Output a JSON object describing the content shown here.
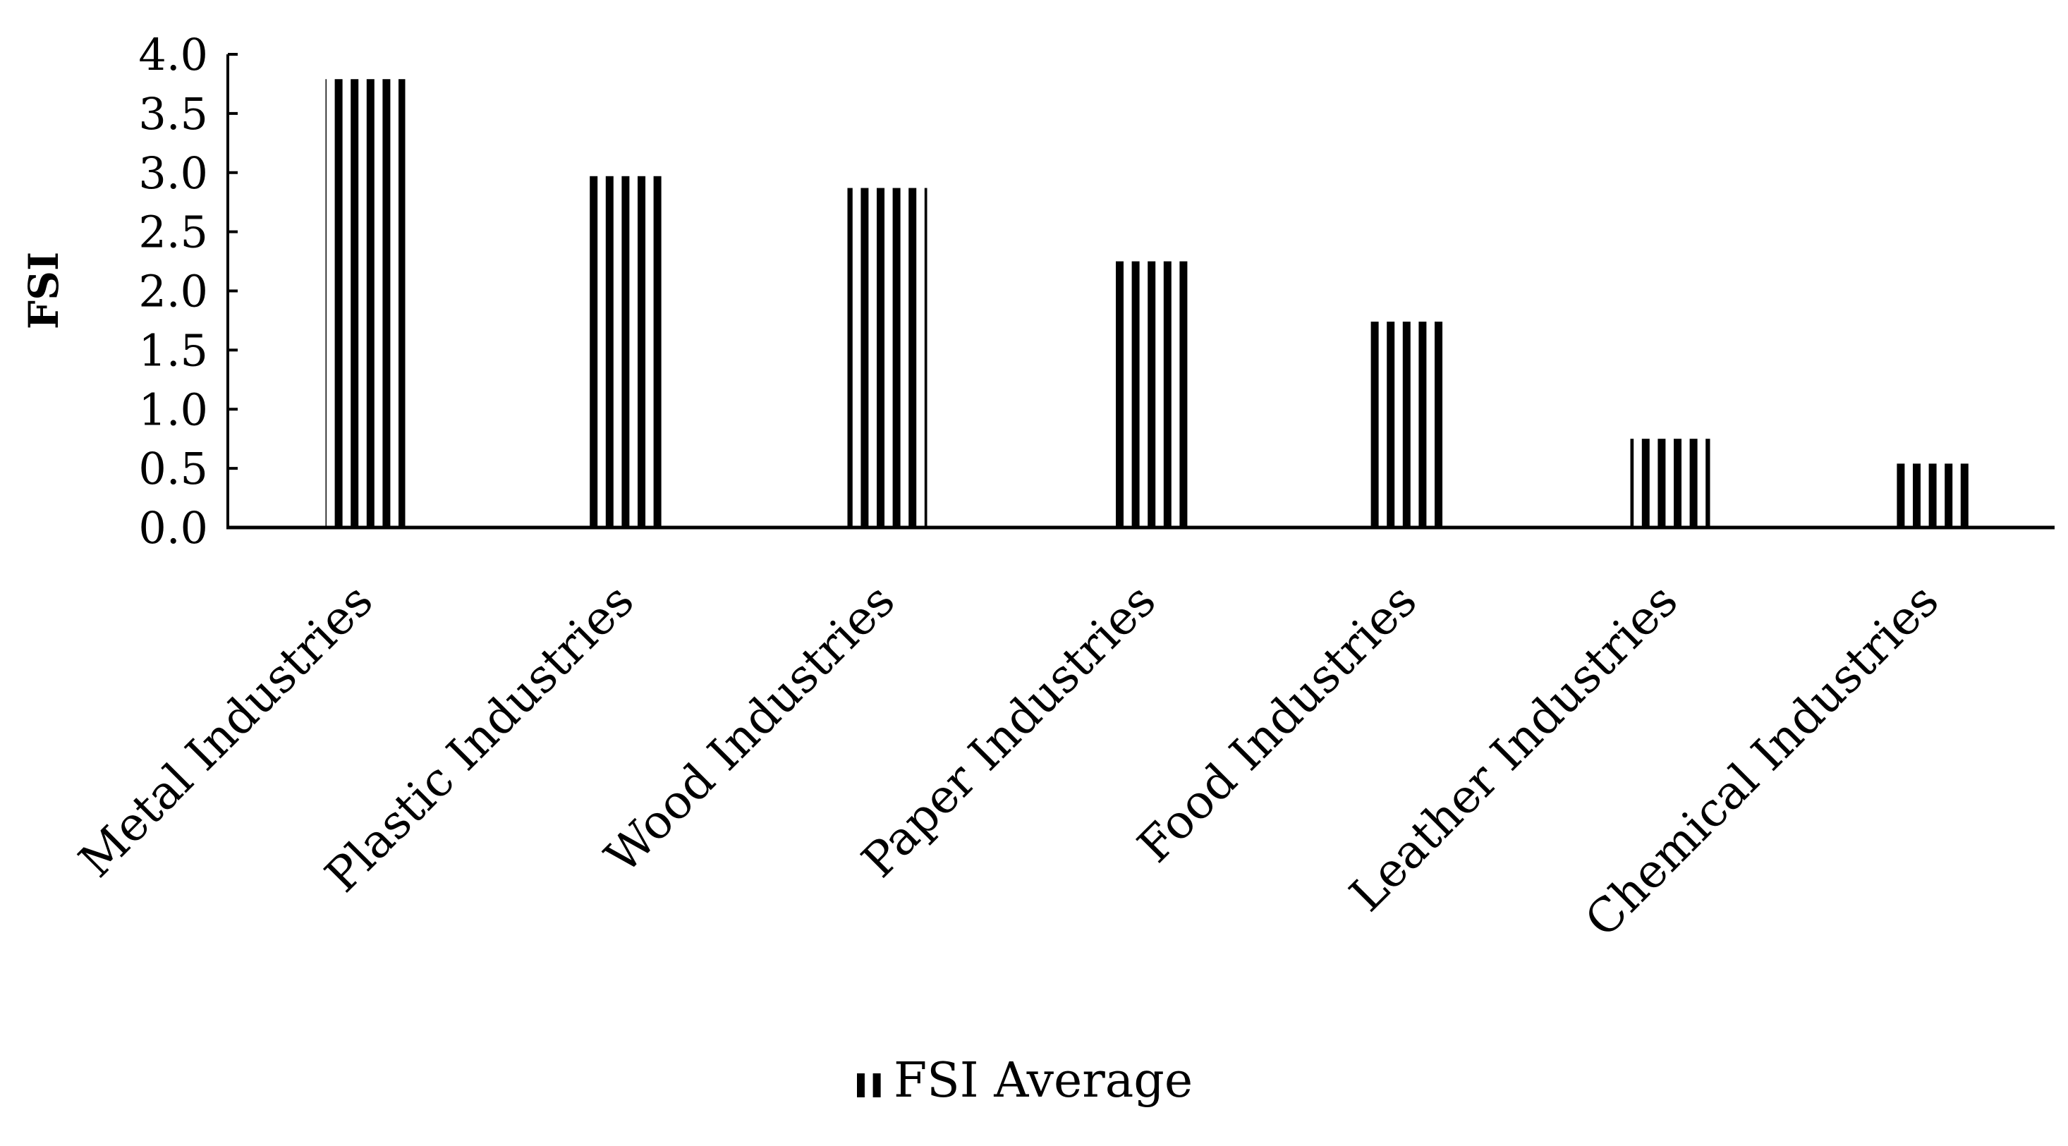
{
  "chart_data": {
    "type": "bar",
    "title": "",
    "xlabel": "",
    "ylabel": "FSI",
    "ylim": [
      0,
      4.0
    ],
    "yticks": [
      "0.0",
      "0.5",
      "1.0",
      "1.5",
      "2.0",
      "2.5",
      "3.0",
      "3.5",
      "4.0"
    ],
    "grid": false,
    "legend_position": "bottom",
    "categories": [
      "Metal Industries",
      "Plastic Industries",
      "Wood Industries",
      "Paper Industries",
      "Food Industries",
      "Leather Industries",
      "Chemical Industries"
    ],
    "series": [
      {
        "name": "FSI Average",
        "values": [
          3.79,
          2.97,
          2.87,
          2.25,
          1.74,
          0.75,
          0.54
        ],
        "fill": "vertical-stripes",
        "color": "#000000"
      }
    ]
  }
}
